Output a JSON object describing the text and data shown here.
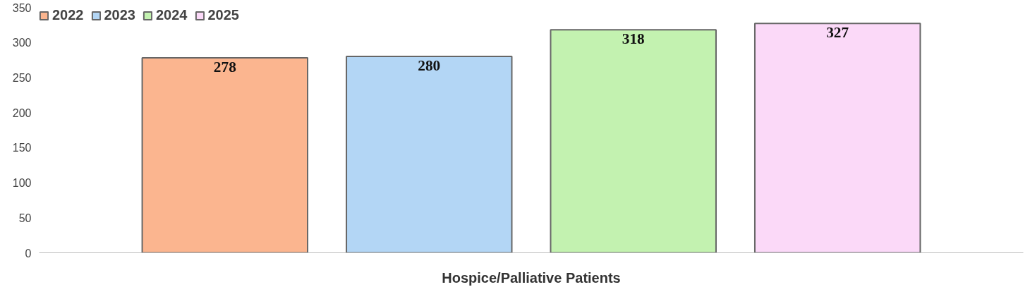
{
  "chart_data": {
    "type": "bar",
    "categories": [
      "Hospice/Palliative Patients"
    ],
    "series": [
      {
        "name": "2022",
        "color": "#fbb58f",
        "values": [
          278
        ]
      },
      {
        "name": "2023",
        "color": "#b3d6f5",
        "values": [
          280
        ]
      },
      {
        "name": "2024",
        "color": "#c3f2b0",
        "values": [
          318
        ]
      },
      {
        "name": "2025",
        "color": "#fbd9f8",
        "values": [
          327
        ]
      }
    ],
    "ylim": [
      0,
      350
    ],
    "yticks": [
      0,
      50,
      100,
      150,
      200,
      250,
      300,
      350
    ],
    "grid": false,
    "legend": "top left",
    "data_labels": true
  }
}
